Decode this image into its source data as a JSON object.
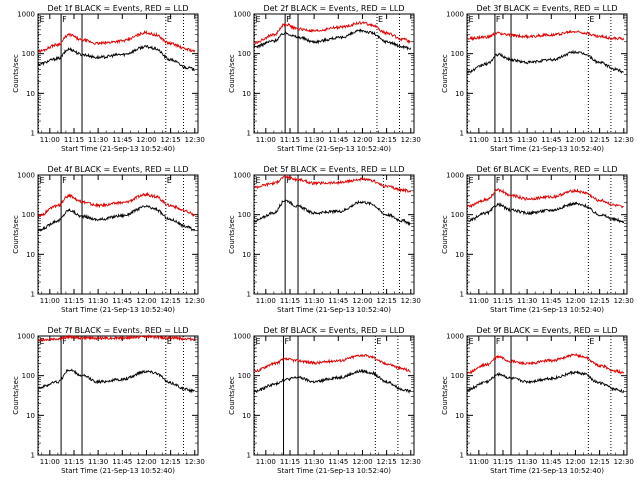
{
  "chart_data": {
    "type": "line",
    "y_scale": "log",
    "ylim": [
      1,
      1000
    ],
    "xlim": [
      "10:52:40",
      "12:32:00"
    ],
    "ylabel": "Counts/sec",
    "xlabel": "Start Time (21-Sep-13 10:52:40)",
    "xtick_labels": [
      "11:00",
      "11:15",
      "11:30",
      "11:45",
      "12:00",
      "12:15",
      "12:30"
    ],
    "ytick_labels": [
      "1",
      "10",
      "100",
      "1000"
    ],
    "series_colors": {
      "events": "#000000",
      "lld": "#e00000"
    },
    "grid": false,
    "panels": [
      {
        "title": "Det 1f BLACK = Events, RED = LLD",
        "markers": [
          {
            "label": "E",
            "time": "10:53",
            "style": "dotted"
          },
          {
            "label": "F",
            "time": "11:07",
            "style": "solid"
          },
          {
            "label": "",
            "time": "11:20",
            "style": "solid"
          },
          {
            "label": "E",
            "time": "12:12",
            "style": "dotted"
          },
          {
            "label": "",
            "time": "12:23",
            "style": "dotted"
          }
        ],
        "series": [
          {
            "key": "events",
            "x": [
              "10:53",
              "11:05",
              "11:12",
              "11:20",
              "11:30",
              "11:45",
              "12:00",
              "12:05",
              "12:15",
              "12:25",
              "12:30"
            ],
            "y": [
              55,
              75,
              130,
              95,
              80,
              95,
              150,
              135,
              70,
              45,
              40
            ]
          },
          {
            "key": "lld",
            "x": [
              "10:53",
              "11:05",
              "11:12",
              "11:20",
              "11:30",
              "11:45",
              "12:00",
              "12:05",
              "12:15",
              "12:25",
              "12:30"
            ],
            "y": [
              115,
              170,
              300,
              220,
              180,
              210,
              340,
              300,
              180,
              130,
              115
            ]
          }
        ]
      },
      {
        "title": "Det 2f BLACK = Events, RED = LLD",
        "markers": [
          {
            "label": "E",
            "time": "10:53",
            "style": "dotted"
          },
          {
            "label": "F",
            "time": "11:12",
            "style": "solid"
          },
          {
            "label": "",
            "time": "11:20",
            "style": "solid"
          },
          {
            "label": "E",
            "time": "12:09",
            "style": "dotted"
          },
          {
            "label": "",
            "time": "12:23",
            "style": "dotted"
          }
        ],
        "series": [
          {
            "key": "events",
            "x": [
              "10:53",
              "11:05",
              "11:12",
              "11:20",
              "11:30",
              "11:45",
              "12:00",
              "12:05",
              "12:15",
              "12:25",
              "12:30"
            ],
            "y": [
              150,
              210,
              330,
              260,
              200,
              250,
              380,
              340,
              200,
              150,
              135
            ]
          },
          {
            "key": "lld",
            "x": [
              "10:53",
              "11:05",
              "11:12",
              "11:20",
              "11:30",
              "11:45",
              "12:00",
              "12:05",
              "12:15",
              "12:25",
              "12:30"
            ],
            "y": [
              190,
              300,
              550,
              420,
              370,
              460,
              600,
              540,
              330,
              230,
              200
            ]
          }
        ]
      },
      {
        "title": "Det 3f BLACK = Events, RED = LLD",
        "markers": [
          {
            "label": "E",
            "time": "10:53",
            "style": "dotted"
          },
          {
            "label": "F",
            "time": "11:10",
            "style": "solid"
          },
          {
            "label": "",
            "time": "11:20",
            "style": "solid"
          },
          {
            "label": "E",
            "time": "12:08",
            "style": "dotted"
          },
          {
            "label": "",
            "time": "12:22",
            "style": "dotted"
          }
        ],
        "series": [
          {
            "key": "events",
            "x": [
              "10:53",
              "11:05",
              "11:12",
              "11:20",
              "11:30",
              "11:45",
              "12:00",
              "12:05",
              "12:15",
              "12:25",
              "12:30"
            ],
            "y": [
              35,
              55,
              95,
              70,
              60,
              70,
              110,
              100,
              60,
              40,
              35
            ]
          },
          {
            "key": "lld",
            "x": [
              "10:53",
              "11:05",
              "11:12",
              "11:20",
              "11:30",
              "11:45",
              "12:00",
              "12:05",
              "12:15",
              "12:25",
              "12:30"
            ],
            "y": [
              240,
              260,
              330,
              290,
              270,
              300,
              360,
              340,
              270,
              240,
              240
            ]
          }
        ]
      },
      {
        "title": "Det 4f BLACK = Events, RED = LLD",
        "markers": [
          {
            "label": "E",
            "time": "10:53",
            "style": "dotted"
          },
          {
            "label": "F",
            "time": "11:07",
            "style": "solid"
          },
          {
            "label": "",
            "time": "11:20",
            "style": "solid"
          },
          {
            "label": "E",
            "time": "12:12",
            "style": "dotted"
          },
          {
            "label": "",
            "time": "12:23",
            "style": "dotted"
          }
        ],
        "series": [
          {
            "key": "events",
            "x": [
              "10:53",
              "11:05",
              "11:12",
              "11:20",
              "11:30",
              "11:45",
              "12:00",
              "12:05",
              "12:15",
              "12:25",
              "12:30"
            ],
            "y": [
              40,
              70,
              130,
              90,
              75,
              95,
              160,
              140,
              75,
              50,
              40
            ]
          },
          {
            "key": "lld",
            "x": [
              "10:53",
              "11:05",
              "11:12",
              "11:20",
              "11:30",
              "11:45",
              "12:00",
              "12:05",
              "12:15",
              "12:25",
              "12:30"
            ],
            "y": [
              95,
              170,
              300,
              210,
              170,
              200,
              320,
              290,
              170,
              120,
              95
            ]
          }
        ]
      },
      {
        "title": "Det 5f BLACK = Events, RED = LLD",
        "markers": [
          {
            "label": "E",
            "time": "10:53",
            "style": "dotted"
          },
          {
            "label": "F",
            "time": "11:12",
            "style": "solid"
          },
          {
            "label": "",
            "time": "11:20",
            "style": "solid"
          },
          {
            "label": "",
            "time": "12:13",
            "style": "dotted"
          },
          {
            "label": "",
            "time": "12:23",
            "style": "dotted"
          }
        ],
        "series": [
          {
            "key": "events",
            "x": [
              "10:53",
              "11:05",
              "11:12",
              "11:20",
              "11:30",
              "11:45",
              "12:00",
              "12:05",
              "12:15",
              "12:25",
              "12:30"
            ],
            "y": [
              70,
              110,
              230,
              160,
              110,
              120,
              210,
              190,
              100,
              70,
              60
            ]
          },
          {
            "key": "lld",
            "x": [
              "10:53",
              "11:05",
              "11:12",
              "11:20",
              "11:30",
              "11:45",
              "12:00",
              "12:05",
              "12:15",
              "12:25",
              "12:30"
            ],
            "y": [
              500,
              620,
              900,
              760,
              620,
              640,
              780,
              720,
              520,
              420,
              380
            ]
          }
        ]
      },
      {
        "title": "Det 6f BLACK = Events, RED = LLD",
        "markers": [
          {
            "label": "E",
            "time": "10:53",
            "style": "dotted"
          },
          {
            "label": "F",
            "time": "11:10",
            "style": "solid"
          },
          {
            "label": "",
            "time": "11:20",
            "style": "solid"
          },
          {
            "label": "",
            "time": "12:08",
            "style": "dotted"
          },
          {
            "label": "",
            "time": "12:22",
            "style": "dotted"
          }
        ],
        "series": [
          {
            "key": "events",
            "x": [
              "10:53",
              "11:05",
              "11:12",
              "11:20",
              "11:30",
              "11:45",
              "12:00",
              "12:05",
              "12:15",
              "12:25",
              "12:30"
            ],
            "y": [
              70,
              110,
              180,
              130,
              110,
              130,
              190,
              170,
              100,
              75,
              65
            ]
          },
          {
            "key": "lld",
            "x": [
              "10:53",
              "11:05",
              "11:12",
              "11:20",
              "11:30",
              "11:45",
              "12:00",
              "12:05",
              "12:15",
              "12:25",
              "12:30"
            ],
            "y": [
              160,
              240,
              420,
              310,
              250,
              280,
              400,
              360,
              230,
              170,
              150
            ]
          }
        ]
      },
      {
        "title": "Det 7f BLACK = Events, RED = LLD",
        "markers": [
          {
            "label": "E",
            "time": "10:53",
            "style": "dotted"
          },
          {
            "label": "F",
            "time": "11:07",
            "style": "solid"
          },
          {
            "label": "",
            "time": "11:20",
            "style": "solid"
          },
          {
            "label": "E",
            "time": "12:12",
            "style": "dotted"
          },
          {
            "label": "",
            "time": "12:23",
            "style": "dotted"
          }
        ],
        "series": [
          {
            "key": "events",
            "x": [
              "10:53",
              "11:05",
              "11:12",
              "11:20",
              "11:30",
              "11:45",
              "12:00",
              "12:05",
              "12:15",
              "12:25",
              "12:30"
            ],
            "y": [
              50,
              70,
              140,
              100,
              70,
              80,
              130,
              120,
              65,
              45,
              40
            ]
          },
          {
            "key": "lld",
            "x": [
              "10:53",
              "11:05",
              "11:12",
              "11:20",
              "11:30",
              "11:45",
              "12:00",
              "12:05",
              "12:15",
              "12:25",
              "12:30"
            ],
            "y": [
              800,
              850,
              950,
              900,
              880,
              900,
              960,
              940,
              900,
              850,
              830
            ]
          }
        ]
      },
      {
        "title": "Det 8f BLACK = Events, RED = LLD",
        "markers": [
          {
            "label": "E",
            "time": "10:53",
            "style": "dotted"
          },
          {
            "label": "F",
            "time": "11:11",
            "style": "solid"
          },
          {
            "label": "",
            "time": "11:20",
            "style": "solid"
          },
          {
            "label": "E",
            "time": "12:08",
            "style": "dotted"
          },
          {
            "label": "",
            "time": "12:22",
            "style": "dotted"
          }
        ],
        "series": [
          {
            "key": "events",
            "x": [
              "10:53",
              "11:05",
              "11:12",
              "11:20",
              "11:30",
              "11:45",
              "12:00",
              "12:05",
              "12:15",
              "12:25",
              "12:30"
            ],
            "y": [
              40,
              60,
              80,
              90,
              70,
              90,
              130,
              120,
              70,
              45,
              40
            ]
          },
          {
            "key": "lld",
            "x": [
              "10:53",
              "11:05",
              "11:12",
              "11:20",
              "11:30",
              "11:45",
              "12:00",
              "12:05",
              "12:15",
              "12:25",
              "12:30"
            ],
            "y": [
              130,
              200,
              260,
              240,
              210,
              240,
              330,
              300,
              200,
              150,
              130
            ]
          }
        ]
      },
      {
        "title": "Det 9f BLACK = Events, RED = LLD",
        "markers": [
          {
            "label": "E",
            "time": "10:53",
            "style": "dotted"
          },
          {
            "label": "F",
            "time": "11:10",
            "style": "solid"
          },
          {
            "label": "",
            "time": "11:20",
            "style": "solid"
          },
          {
            "label": "E",
            "time": "12:08",
            "style": "dotted"
          },
          {
            "label": "",
            "time": "12:22",
            "style": "dotted"
          }
        ],
        "series": [
          {
            "key": "events",
            "x": [
              "10:53",
              "11:05",
              "11:12",
              "11:20",
              "11:30",
              "11:45",
              "12:00",
              "12:05",
              "12:15",
              "12:25",
              "12:30"
            ],
            "y": [
              45,
              70,
              110,
              85,
              70,
              85,
              120,
              110,
              65,
              45,
              40
            ]
          },
          {
            "key": "lld",
            "x": [
              "10:53",
              "11:05",
              "11:12",
              "11:20",
              "11:30",
              "11:45",
              "12:00",
              "12:05",
              "12:15",
              "12:25",
              "12:30"
            ],
            "y": [
              120,
              190,
              300,
              230,
              200,
              240,
              330,
              300,
              180,
              130,
              120
            ]
          }
        ]
      }
    ]
  }
}
